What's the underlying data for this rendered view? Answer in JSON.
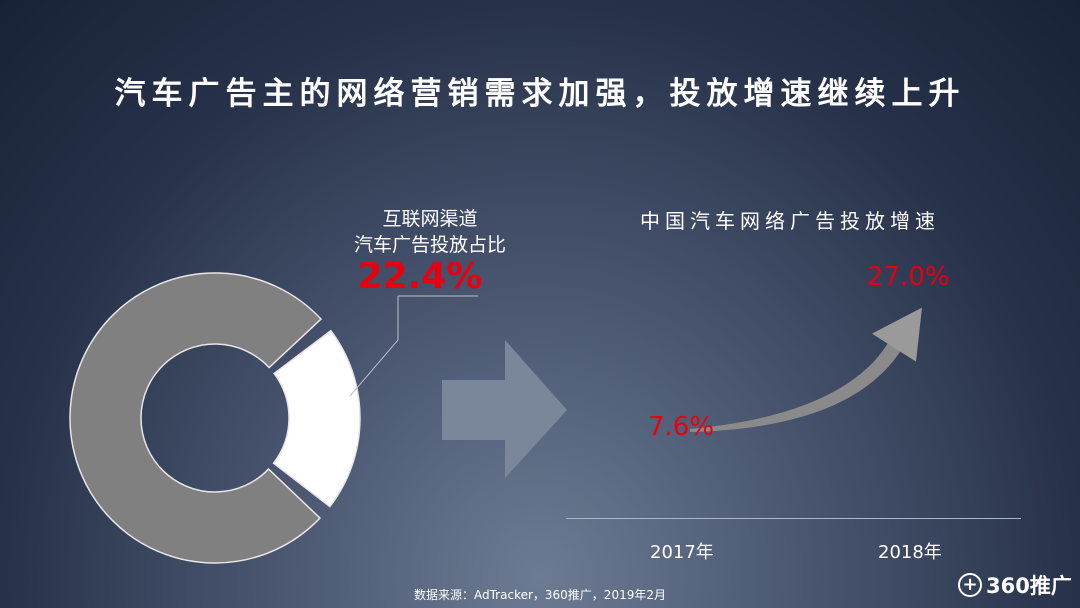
{
  "title": "汽车广告主的网络营销需求加强，投放增速继续上升",
  "source": "数据来源：AdTracker，360推广，2019年2月",
  "logo": {
    "icon": "plus-circle-icon",
    "text": "360推广"
  },
  "chart_data": [
    {
      "type": "pie",
      "label_lines": [
        "互联网渠道",
        "汽车广告投放占比"
      ],
      "slices": [
        {
          "label": "互联网渠道",
          "value": 22.4,
          "display": "22.4%",
          "color": "#ffffff"
        },
        {
          "label": "",
          "value": 77.6,
          "color": "#808080"
        }
      ]
    },
    {
      "type": "line",
      "title": "中国汽车网络广告投放增速",
      "categories": [
        "2017年",
        "2018年"
      ],
      "values": [
        7.6,
        27.0
      ],
      "labels": [
        "7.6%",
        "27.0%"
      ],
      "color": "#e8000f"
    }
  ]
}
